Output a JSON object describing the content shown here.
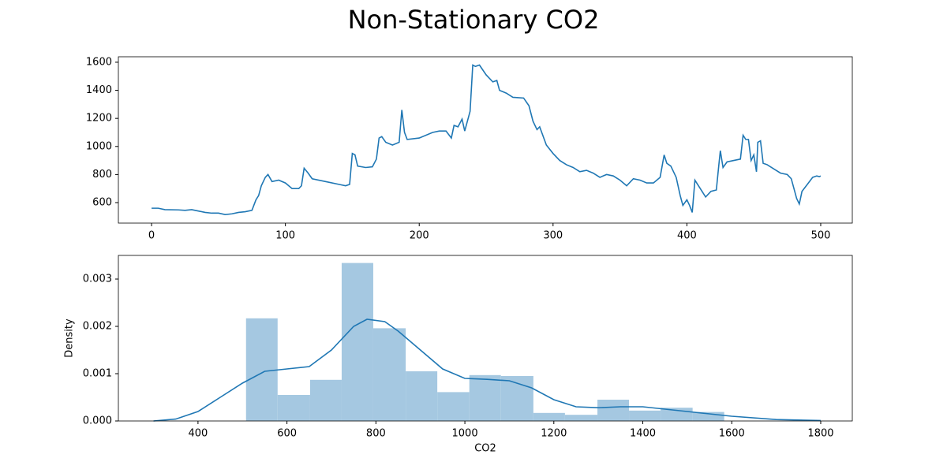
{
  "title": "Non-Stationary CO2",
  "chart_data": [
    {
      "type": "line",
      "color": "#1f77b4",
      "x": [
        0,
        5,
        10,
        20,
        25,
        30,
        35,
        40,
        45,
        50,
        55,
        60,
        65,
        70,
        75,
        78,
        80,
        82,
        85,
        87,
        90,
        95,
        100,
        105,
        110,
        112,
        114,
        117,
        120,
        130,
        140,
        145,
        148,
        150,
        152,
        154,
        160,
        165,
        168,
        170,
        172,
        175,
        180,
        185,
        187,
        189,
        191,
        200,
        210,
        215,
        220,
        224,
        226,
        229,
        232,
        234,
        238,
        240,
        242,
        245,
        250,
        255,
        258,
        260,
        265,
        270,
        278,
        282,
        285,
        288,
        290,
        295,
        300,
        305,
        310,
        315,
        320,
        325,
        330,
        335,
        340,
        345,
        350,
        355,
        360,
        365,
        370,
        375,
        380,
        383,
        385,
        388,
        392,
        395,
        397,
        400,
        402,
        404,
        406,
        410,
        414,
        418,
        422,
        424,
        425,
        427,
        430,
        435,
        440,
        442,
        444,
        446,
        448,
        450,
        452,
        453,
        455,
        457,
        460,
        465,
        470,
        475,
        478,
        480,
        482,
        484,
        486,
        490,
        494,
        497,
        499,
        500
      ],
      "values": [
        560,
        560,
        550,
        548,
        545,
        550,
        540,
        530,
        525,
        525,
        515,
        520,
        530,
        535,
        545,
        620,
        650,
        720,
        780,
        800,
        750,
        760,
        740,
        700,
        700,
        720,
        845,
        810,
        770,
        750,
        730,
        720,
        730,
        950,
        940,
        860,
        850,
        855,
        910,
        1060,
        1070,
        1030,
        1010,
        1030,
        1260,
        1100,
        1050,
        1060,
        1100,
        1110,
        1110,
        1060,
        1150,
        1140,
        1195,
        1110,
        1250,
        1580,
        1570,
        1580,
        1510,
        1460,
        1470,
        1400,
        1380,
        1350,
        1345,
        1290,
        1180,
        1120,
        1140,
        1010,
        950,
        900,
        870,
        850,
        820,
        830,
        810,
        780,
        800,
        790,
        760,
        720,
        770,
        760,
        740,
        740,
        780,
        940,
        880,
        860,
        780,
        650,
        580,
        620,
        580,
        530,
        760,
        700,
        640,
        680,
        690,
        880,
        970,
        850,
        890,
        900,
        910,
        1080,
        1050,
        1050,
        900,
        940,
        820,
        1030,
        1040,
        880,
        870,
        840,
        810,
        800,
        770,
        700,
        630,
        590,
        680,
        730,
        780,
        790,
        785,
        790
      ],
      "xlim": [
        -24.8,
        523.6
      ],
      "ylim": [
        454,
        1639
      ],
      "xticks": [
        0,
        100,
        200,
        300,
        400,
        500
      ],
      "yticks": [
        600,
        800,
        1000,
        1200,
        1400,
        1600
      ]
    },
    {
      "type": "histogram",
      "color": "#a5c8e1",
      "line_color": "#1f77b4",
      "xlabel": "CO2",
      "ylabel": "Density",
      "bins": [
        508,
        579,
        652,
        723,
        794,
        867,
        938,
        1010,
        1081,
        1154,
        1225,
        1298,
        1369,
        1440,
        1512,
        1583
      ],
      "values": [
        0.00217,
        0.00055,
        0.00087,
        0.00334,
        0.00196,
        0.00105,
        0.00061,
        0.00097,
        0.00095,
        0.00017,
        0.00013,
        0.00045,
        0.00022,
        0.00028,
        0.00019
      ],
      "kde": {
        "x": [
          300,
          350,
          400,
          450,
          500,
          550,
          600,
          650,
          700,
          750,
          780,
          820,
          850,
          900,
          950,
          1000,
          1050,
          1100,
          1150,
          1200,
          1250,
          1300,
          1350,
          1400,
          1450,
          1500,
          1550,
          1600,
          1700,
          1800
        ],
        "values": [
          0,
          4e-05,
          0.0002,
          0.0005,
          0.0008,
          0.00105,
          0.0011,
          0.00115,
          0.0015,
          0.002,
          0.00215,
          0.0021,
          0.0019,
          0.0015,
          0.0011,
          0.0009,
          0.00088,
          0.00085,
          0.0007,
          0.00045,
          0.0003,
          0.00028,
          0.0003,
          0.0003,
          0.00025,
          0.0002,
          0.00015,
          0.0001,
          3e-05,
          1e-05
        ]
      },
      "xlim": [
        221,
        1871
      ],
      "ylim": [
        0,
        0.0035
      ],
      "xticks": [
        400,
        600,
        800,
        1000,
        1200,
        1400,
        1600,
        1800
      ],
      "yticks": [
        {
          "value": 0,
          "label": "0.000"
        },
        {
          "value": 0.001,
          "label": "0.001"
        },
        {
          "value": 0.002,
          "label": "0.002"
        },
        {
          "value": 0.003,
          "label": "0.003"
        }
      ]
    }
  ]
}
